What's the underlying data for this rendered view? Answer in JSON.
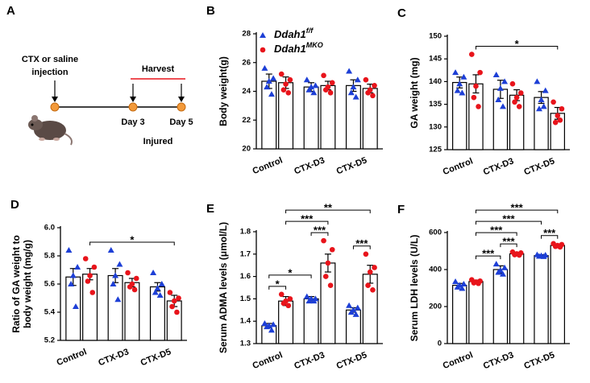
{
  "diagram": {
    "panel": "A",
    "injection": [
      "CTX or saline",
      "injection"
    ],
    "harvest": "Harvest",
    "day3": "Day 3",
    "day5": "Day 5",
    "injured": "Injured"
  },
  "chart_data": [
    {
      "type": "bar",
      "panel": "B",
      "ylabel": [
        "Body weight(g)"
      ],
      "categories": [
        "Control",
        "CTX-D3",
        "CTX-D5"
      ],
      "ylim": [
        20,
        28
      ],
      "yticks": [
        20,
        22,
        24,
        26,
        28
      ],
      "legend": "upper left",
      "series": [
        {
          "name": "Ddah1",
          "name_sup": "f/f",
          "color": "#1d3fd6",
          "marker": "triangle",
          "values": [
            24.7,
            24.3,
            24.4
          ],
          "errors": [
            0.5,
            0.3,
            0.4
          ],
          "points": [
            [
              25.6,
              24.9,
              24.7,
              24.3,
              23.8
            ],
            [
              24.8,
              24.4,
              24.3,
              24.1,
              23.9
            ],
            [
              25.4,
              24.8,
              24.3,
              23.9,
              23.6
            ]
          ]
        },
        {
          "name": "Ddah1",
          "name_sup": "MKO",
          "color": "#e8141b",
          "marker": "circle",
          "values": [
            24.6,
            24.4,
            24.2
          ],
          "errors": [
            0.4,
            0.3,
            0.3
          ],
          "points": [
            [
              25.2,
              24.8,
              24.5,
              24.1,
              23.9
            ],
            [
              25.1,
              24.6,
              24.3,
              24.1,
              23.9
            ],
            [
              24.8,
              24.4,
              24.1,
              23.9,
              23.7
            ]
          ]
        }
      ],
      "annotations": []
    },
    {
      "type": "bar",
      "panel": "C",
      "ylabel": [
        "GA weight (mg)"
      ],
      "categories": [
        "Control",
        "CTX-D3",
        "CTX-D5"
      ],
      "ylim": [
        125,
        150
      ],
      "yticks": [
        125,
        130,
        135,
        140,
        145,
        150
      ],
      "series": [
        {
          "color": "#1d3fd6",
          "marker": "triangle",
          "values": [
            139.8,
            138.3,
            136.5
          ],
          "errors": [
            1.2,
            2,
            1.3
          ],
          "points": [
            [
              142,
              141,
              139.5,
              138,
              137.5
            ],
            [
              141.5,
              140,
              138.5,
              136,
              134.5
            ],
            [
              140,
              138,
              136,
              134,
              134.5
            ]
          ]
        },
        {
          "color": "#e8141b",
          "marker": "circle",
          "values": [
            139.5,
            137,
            133
          ],
          "errors": [
            2,
            1.2,
            1.3
          ],
          "points": [
            [
              146,
              142,
              139,
              136.5,
              134.5
            ],
            [
              139.5,
              137.5,
              136.5,
              135.5,
              134.5
            ],
            [
              135.5,
              134,
              132.5,
              131,
              131.5
            ]
          ]
        }
      ],
      "annotations": [
        {
          "label": "*",
          "from": [
            0,
            1
          ],
          "to": [
            2,
            1
          ]
        }
      ]
    },
    {
      "type": "bar",
      "panel": "D",
      "ylabel": [
        "Ratio of GA weight to",
        "body weight (mg/g)"
      ],
      "categories": [
        "Control",
        "CTX-D3",
        "CTX-D5"
      ],
      "ylim": [
        5.2,
        6
      ],
      "yticks": [
        5.2,
        5.4,
        5.6,
        5.8,
        {
          "value": 6,
          "label": "6.0"
        }
      ],
      "series": [
        {
          "color": "#1d3fd6",
          "marker": "triangle",
          "values": [
            5.65,
            5.66,
            5.58
          ],
          "errors": [
            0.06,
            0.05,
            0.03
          ],
          "points": [
            [
              5.84,
              5.72,
              5.66,
              5.6,
              5.44
            ],
            [
              5.84,
              5.74,
              5.66,
              5.6,
              5.49
            ],
            [
              5.68,
              5.6,
              5.57,
              5.54,
              5.52
            ]
          ]
        },
        {
          "color": "#e8141b",
          "marker": "circle",
          "values": [
            5.67,
            5.61,
            5.48
          ],
          "errors": [
            0.04,
            0.03,
            0.04
          ],
          "points": [
            [
              5.78,
              5.72,
              5.66,
              5.62,
              5.54
            ],
            [
              5.68,
              5.64,
              5.6,
              5.58,
              5.56
            ],
            [
              5.54,
              5.5,
              5.48,
              5.44,
              5.4
            ]
          ]
        }
      ],
      "annotations": [
        {
          "label": "*",
          "from": [
            0,
            1
          ],
          "to": [
            2,
            1
          ]
        }
      ]
    },
    {
      "type": "bar",
      "panel": "E",
      "ylabel": [
        "Serum ADMA levels (μmol/L)"
      ],
      "categories": [
        "Control",
        "CTX-D3",
        "CTX-D5"
      ],
      "ylim": [
        1.3,
        1.8
      ],
      "yticks": [
        1.3,
        1.4,
        1.5,
        1.6,
        1.7,
        1.8
      ],
      "series": [
        {
          "color": "#1d3fd6",
          "marker": "triangle",
          "values": [
            1.38,
            1.5,
            1.45
          ],
          "errors": [
            0.01,
            0.01,
            0.01
          ],
          "points": [
            [
              1.39,
              1.385,
              1.38,
              1.375,
              1.36
            ],
            [
              1.51,
              1.5,
              1.5,
              1.49,
              1.49
            ],
            [
              1.47,
              1.46,
              1.45,
              1.44,
              1.43
            ]
          ]
        },
        {
          "color": "#e8141b",
          "marker": "circle",
          "values": [
            1.49,
            1.66,
            1.61
          ],
          "errors": [
            0.02,
            0.04,
            0.04
          ],
          "points": [
            [
              1.52,
              1.5,
              1.49,
              1.48,
              1.47
            ],
            [
              1.76,
              1.72,
              1.66,
              1.6,
              1.56
            ],
            [
              1.7,
              1.64,
              1.62,
              1.56,
              1.54
            ]
          ]
        }
      ],
      "annotations": [
        {
          "label": "*",
          "from": [
            0,
            0
          ],
          "to": [
            0,
            1
          ]
        },
        {
          "label": "*",
          "from": [
            0,
            0
          ],
          "to": [
            1,
            0
          ]
        },
        {
          "label": "***",
          "from": [
            1,
            0
          ],
          "to": [
            1,
            1
          ]
        },
        {
          "label": "***",
          "from": [
            0,
            1
          ],
          "to": [
            1,
            1
          ]
        },
        {
          "label": "***",
          "from": [
            2,
            0
          ],
          "to": [
            2,
            1
          ]
        },
        {
          "label": "**",
          "from": [
            0,
            1
          ],
          "to": [
            2,
            1
          ]
        }
      ]
    },
    {
      "type": "bar",
      "panel": "F",
      "ylabel": [
        "Serum LDH levels (U/L)"
      ],
      "categories": [
        "Control",
        "CTX-D3",
        "CTX-D5"
      ],
      "ylim": [
        0,
        600
      ],
      "yticks": [
        0,
        200,
        400,
        600
      ],
      "series": [
        {
          "color": "#1d3fd6",
          "marker": "triangle",
          "values": [
            315,
            400,
            475
          ],
          "errors": [
            10,
            20,
            5
          ],
          "points": [
            [
              335,
              322,
              315,
              305,
              298
            ],
            [
              430,
              410,
              395,
              385,
              375
            ],
            [
              480,
              478,
              475,
              472,
              470
            ]
          ]
        },
        {
          "color": "#e8141b",
          "marker": "circle",
          "values": [
            335,
            485,
            530
          ],
          "errors": [
            8,
            8,
            5
          ],
          "points": [
            [
              345,
              338,
              333,
              328,
              325
            ],
            [
              495,
              490,
              485,
              480,
              478
            ],
            [
              540,
              535,
              530,
              525,
              522
            ]
          ]
        }
      ],
      "annotations": [
        {
          "label": "***",
          "from": [
            0,
            1
          ],
          "to": [
            1,
            0
          ]
        },
        {
          "label": "***",
          "from": [
            1,
            0
          ],
          "to": [
            1,
            1
          ]
        },
        {
          "label": "***",
          "from": [
            0,
            1
          ],
          "to": [
            1,
            1
          ]
        },
        {
          "label": "***",
          "from": [
            2,
            0
          ],
          "to": [
            2,
            1
          ]
        },
        {
          "label": "***",
          "from": [
            0,
            1
          ],
          "to": [
            2,
            0
          ]
        },
        {
          "label": "***",
          "from": [
            0,
            1
          ],
          "to": [
            2,
            1
          ]
        }
      ]
    }
  ]
}
